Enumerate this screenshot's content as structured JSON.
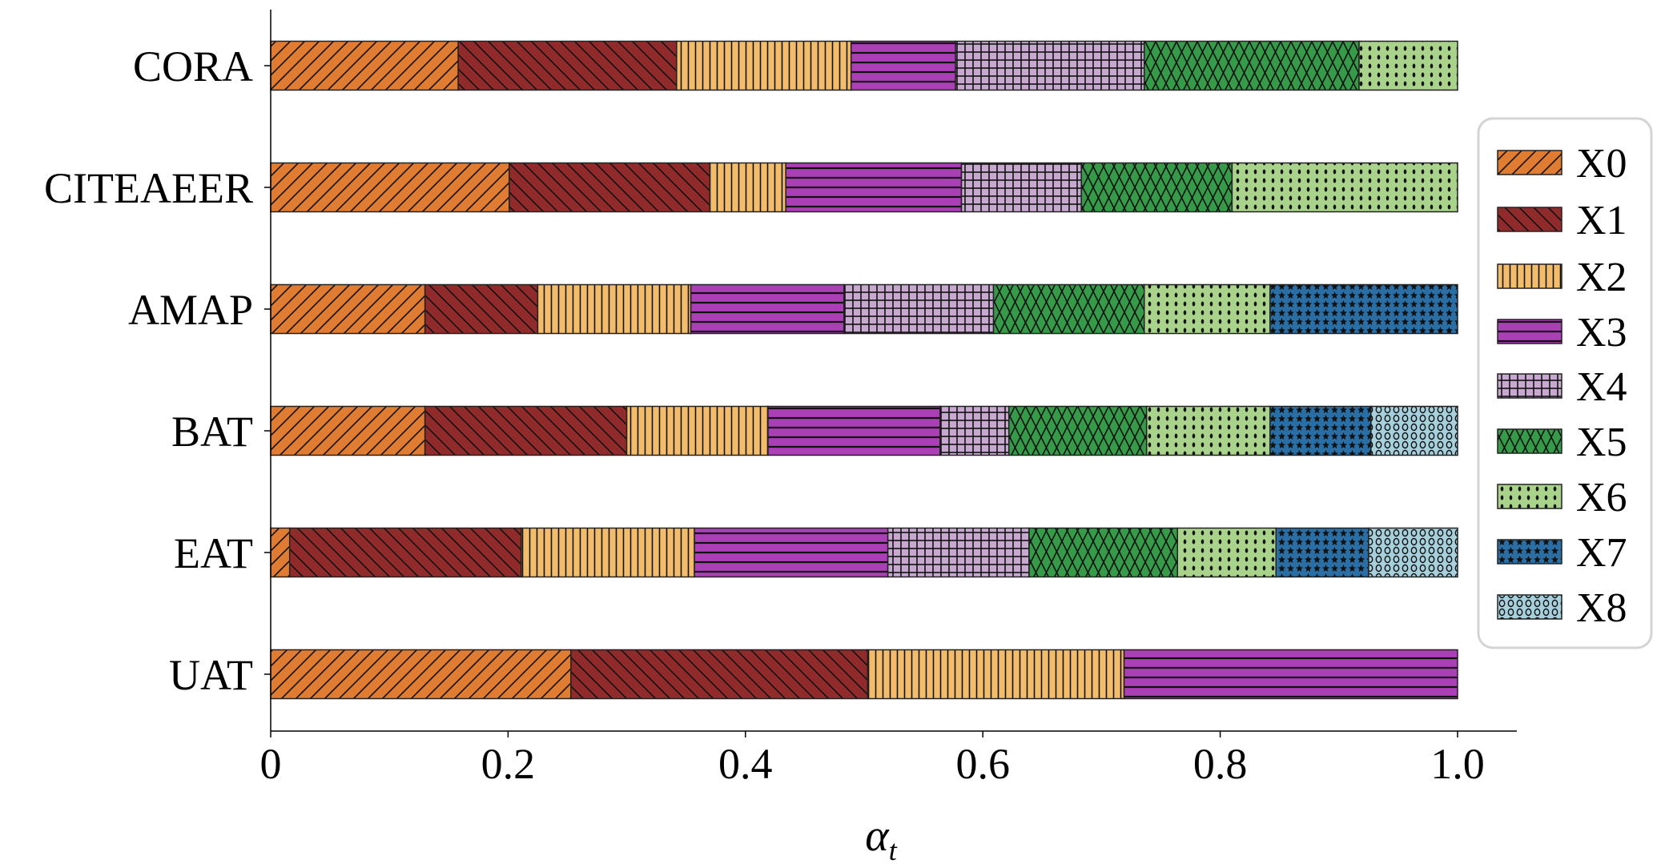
{
  "chart_data": {
    "type": "bar",
    "orientation": "horizontal",
    "stacked": true,
    "categories": [
      "CORA",
      "CITEAEER",
      "AMAP",
      "BAT",
      "EAT",
      "UAT"
    ],
    "xlabel": "α_t",
    "xlabel_main": "α",
    "xlabel_sub": "t",
    "ylabel": "",
    "xlim": [
      0,
      1.05
    ],
    "xticks": [
      0,
      0.2,
      0.4,
      0.6,
      0.8,
      1.0
    ],
    "xtick_labels": [
      "0",
      "0.2",
      "0.4",
      "0.6",
      "0.8",
      "1.0"
    ],
    "grid": false,
    "legend_position": "right",
    "series": [
      {
        "name": "X0",
        "color": "#e07b32",
        "hatch": "diagonal-forward",
        "values": [
          0.158,
          0.201,
          0.13,
          0.13,
          0.016,
          0.253
        ]
      },
      {
        "name": "X1",
        "color": "#912b2b",
        "hatch": "diagonal-back",
        "values": [
          0.184,
          0.169,
          0.095,
          0.17,
          0.195,
          0.25
        ]
      },
      {
        "name": "X2",
        "color": "#f3bc6b",
        "hatch": "vertical",
        "values": [
          0.147,
          0.064,
          0.129,
          0.119,
          0.146,
          0.216
        ]
      },
      {
        "name": "X3",
        "color": "#ab3fb5",
        "hatch": "horizontal",
        "values": [
          0.088,
          0.148,
          0.129,
          0.145,
          0.163,
          0.281
        ]
      },
      {
        "name": "X4",
        "color": "#c7a9d0",
        "hatch": "grid",
        "values": [
          0.159,
          0.101,
          0.126,
          0.058,
          0.119,
          0
        ]
      },
      {
        "name": "X5",
        "color": "#369b48",
        "hatch": "crosshatch",
        "values": [
          0.181,
          0.127,
          0.127,
          0.116,
          0.125,
          0
        ]
      },
      {
        "name": "X6",
        "color": "#a9d28a",
        "hatch": "dots",
        "values": [
          0.083,
          0.19,
          0.106,
          0.104,
          0.083,
          0
        ]
      },
      {
        "name": "X7",
        "color": "#2a6ea6",
        "hatch": "stars",
        "values": [
          0,
          0,
          0.158,
          0.085,
          0.078,
          0
        ]
      },
      {
        "name": "X8",
        "color": "#a7d0dd",
        "hatch": "circles",
        "values": [
          0,
          0,
          0,
          0.073,
          0.075,
          0
        ]
      }
    ]
  }
}
